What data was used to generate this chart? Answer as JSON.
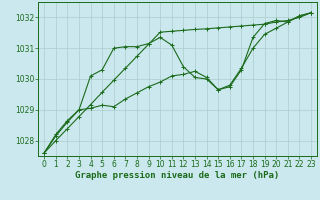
{
  "title": "Graphe pression niveau de la mer (hPa)",
  "x_values": [
    0,
    1,
    2,
    3,
    4,
    5,
    6,
    7,
    8,
    9,
    10,
    11,
    12,
    13,
    14,
    15,
    16,
    17,
    18,
    19,
    20,
    21,
    22,
    23
  ],
  "line1": [
    1027.6,
    1028.2,
    1028.65,
    1029.0,
    1030.1,
    1030.3,
    1031.0,
    1031.05,
    1031.05,
    1031.15,
    1031.35,
    1031.1,
    1030.4,
    1030.05,
    1030.0,
    1029.65,
    1029.75,
    1030.3,
    1031.35,
    1031.8,
    1031.9,
    1031.85,
    1032.05,
    1032.15
  ],
  "line2": [
    1027.6,
    1028.15,
    1028.6,
    1029.0,
    1029.05,
    1029.15,
    1029.1,
    1029.35,
    1029.55,
    1029.75,
    1029.9,
    1030.1,
    1030.15,
    1030.25,
    1030.05,
    1029.65,
    1029.8,
    1030.35,
    1031.0,
    1031.45,
    1031.65,
    1031.85,
    1032.05,
    1032.15
  ],
  "line3": [
    1027.6,
    1028.0,
    1028.39,
    1028.78,
    1029.17,
    1029.57,
    1029.96,
    1030.35,
    1030.74,
    1031.13,
    1031.52,
    1031.55,
    1031.58,
    1031.61,
    1031.63,
    1031.66,
    1031.69,
    1031.72,
    1031.75,
    1031.78,
    1031.85,
    1031.9,
    1032.0,
    1032.15
  ],
  "line_color": "#1a6b1a",
  "bg_color": "#cce8ef",
  "grid_color": "#aacccc",
  "ylim": [
    1027.5,
    1032.5
  ],
  "yticks": [
    1028,
    1029,
    1030,
    1031,
    1032
  ],
  "xticks": [
    0,
    1,
    2,
    3,
    4,
    5,
    6,
    7,
    8,
    9,
    10,
    11,
    12,
    13,
    14,
    15,
    16,
    17,
    18,
    19,
    20,
    21,
    22,
    23
  ],
  "title_color": "#1a6b1a",
  "title_fontsize": 6.5,
  "tick_fontsize": 5.5,
  "marker_size": 2.5,
  "line_width": 0.8
}
